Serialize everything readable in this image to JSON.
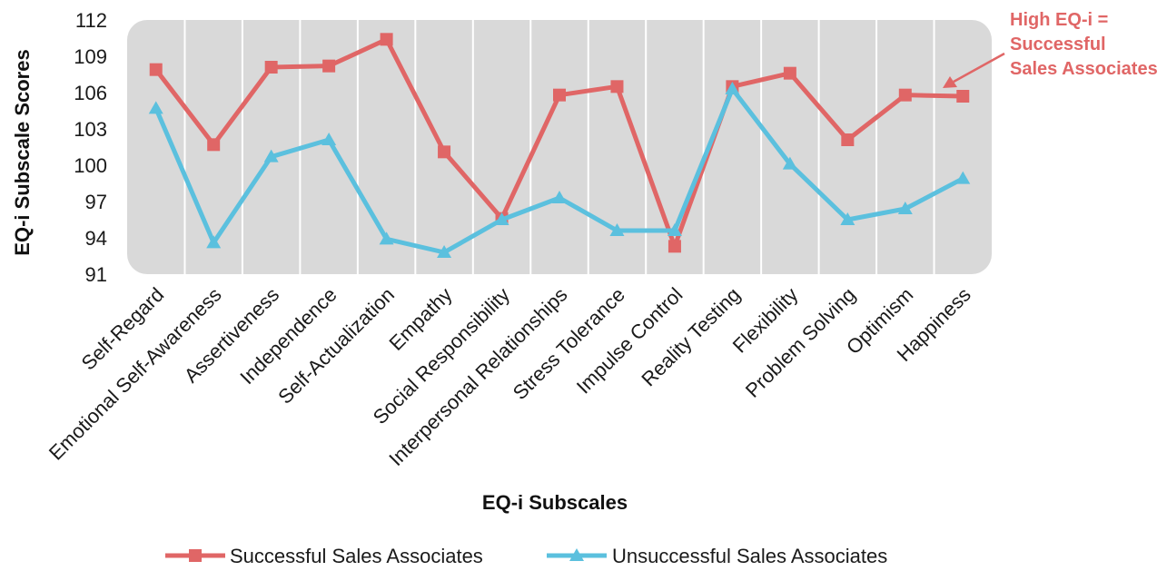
{
  "chart_data": {
    "type": "line",
    "xlabel": "EQ-i Subscales",
    "ylabel": "EQ-i Subscale Scores",
    "ylim": [
      91,
      112
    ],
    "yticks": [
      91,
      94,
      97,
      100,
      103,
      106,
      109,
      112
    ],
    "grid": "vertical",
    "categories": [
      "Self-Regard",
      "Emotional Self-Awareness",
      "Assertiveness",
      "Independence",
      "Self-Actualization",
      "Empathy",
      "Social Responsibility",
      "Interpersonal Relationships",
      "Stress Tolerance",
      "Impulse Control",
      "Reality Testing",
      "Flexibility",
      "Problem Solving",
      "Optimism",
      "Happiness"
    ],
    "series": [
      {
        "name": "Successful Sales Associates",
        "color": "#e06666",
        "marker": "square",
        "values": [
          107.9,
          101.7,
          108.1,
          108.2,
          110.4,
          101.1,
          95.6,
          105.8,
          106.5,
          93.3,
          106.5,
          107.6,
          102.1,
          105.8,
          105.7
        ]
      },
      {
        "name": "Unsuccessful Sales Associates",
        "color": "#5bc0de",
        "marker": "triangle",
        "values": [
          104.7,
          93.6,
          100.7,
          102.1,
          93.9,
          92.8,
          95.5,
          97.3,
          94.6,
          94.6,
          106.3,
          100.1,
          95.5,
          96.4,
          98.9
        ]
      }
    ],
    "legend_position": "bottom",
    "annotation": {
      "text_lines": [
        "High EQ-i =",
        "Successful",
        "Sales Associates"
      ],
      "color": "#e06666"
    },
    "plot_background": "#d9d9d9"
  }
}
